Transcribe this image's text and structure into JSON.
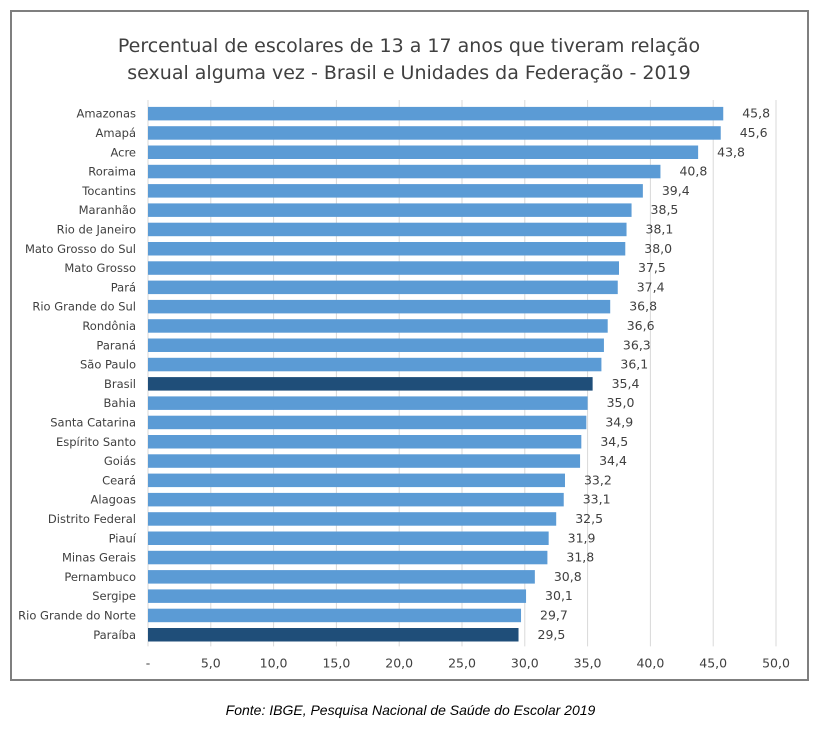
{
  "chart_data": {
    "type": "bar",
    "orientation": "horizontal",
    "title": "Percentual de escolares de 13 a 17 anos que tiveram relação sexual alguma vez - Brasil e Unidades da Federação - 2019",
    "title_lines": [
      "Percentual de escolares de 13 a 17 anos que tiveram relação",
      "sexual alguma vez - Brasil e Unidades da Federação - 2019"
    ],
    "categories": [
      "Amazonas",
      "Amapá",
      "Acre",
      "Roraima",
      "Tocantins",
      "Maranhão",
      "Rio de Janeiro",
      "Mato Grosso do Sul",
      "Mato Grosso",
      "Pará",
      "Rio Grande do Sul",
      "Rondônia",
      "Paraná",
      "São Paulo",
      "Brasil",
      "Bahia",
      "Santa Catarina",
      "Espírito Santo",
      "Goiás",
      "Ceará",
      "Alagoas",
      "Distrito Federal",
      "Piauí",
      "Minas Gerais",
      "Pernambuco",
      "Sergipe",
      "Rio Grande do Norte",
      "Paraíba"
    ],
    "values": [
      45.8,
      45.6,
      43.8,
      40.8,
      39.4,
      38.5,
      38.1,
      38.0,
      37.5,
      37.4,
      36.8,
      36.6,
      36.3,
      36.1,
      35.4,
      35.0,
      34.9,
      34.5,
      34.4,
      33.2,
      33.1,
      32.5,
      31.9,
      31.8,
      30.8,
      30.1,
      29.7,
      29.5
    ],
    "value_labels": [
      "45,8",
      "45,6",
      "43,8",
      "40,8",
      "39,4",
      "38,5",
      "38,1",
      "38,0",
      "37,5",
      "37,4",
      "36,8",
      "36,6",
      "36,3",
      "36,1",
      "35,4",
      "35,0",
      "34,9",
      "34,5",
      "34,4",
      "33,2",
      "33,1",
      "32,5",
      "31,9",
      "31,8",
      "30,8",
      "30,1",
      "29,7",
      "29,5"
    ],
    "highlighted": [
      "Brasil",
      "Paraíba"
    ],
    "xlim": [
      0,
      50
    ],
    "x_ticks": [
      0,
      5,
      10,
      15,
      20,
      25,
      30,
      35,
      40,
      45,
      50
    ],
    "x_tick_labels": [
      "-",
      "5,0",
      "10,0",
      "15,0",
      "20,0",
      "25,0",
      "30,0",
      "35,0",
      "40,0",
      "45,0",
      "50,0"
    ],
    "grid": "vertical",
    "colors": {
      "bar": "#5b9bd5",
      "highlight": "#1f4e79",
      "grid": "#d9d9d9",
      "text": "#404040"
    }
  },
  "source_note": "Fonte: IBGE, Pesquisa Nacional de Saúde do Escolar 2019"
}
